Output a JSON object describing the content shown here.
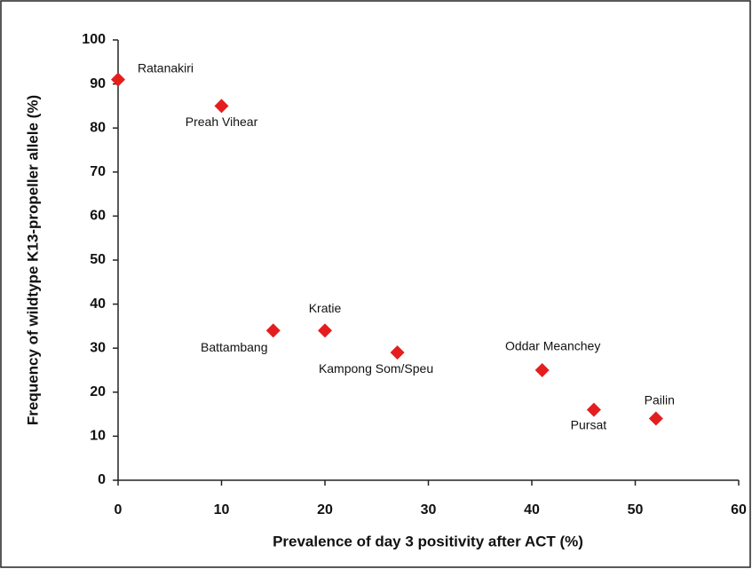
{
  "chart_data": {
    "type": "scatter",
    "x_label": "Prevalence of day 3 positivity after ACT (%)",
    "y_label": "Frequency of wildtype K13-propeller allele  (%)",
    "labels": [
      "Ratanakiri",
      "Preah Vihear",
      "Battambang",
      "Kratie",
      "Kampong Som/Speu",
      "Oddar Meanchey",
      "Pursat",
      "Pailin"
    ],
    "x": [
      0,
      10,
      15,
      20,
      27,
      41,
      46,
      52
    ],
    "values": [
      91,
      85,
      34,
      34,
      29,
      25,
      16,
      14
    ],
    "color": "#e41e1e",
    "xlim": [
      0,
      60
    ],
    "xticks": [
      0,
      10,
      20,
      30,
      40,
      50,
      60
    ],
    "ylim": [
      0,
      100
    ],
    "yticks": [
      0,
      10,
      20,
      30,
      40,
      50,
      60,
      70,
      80,
      90,
      100
    ],
    "grid": false
  }
}
